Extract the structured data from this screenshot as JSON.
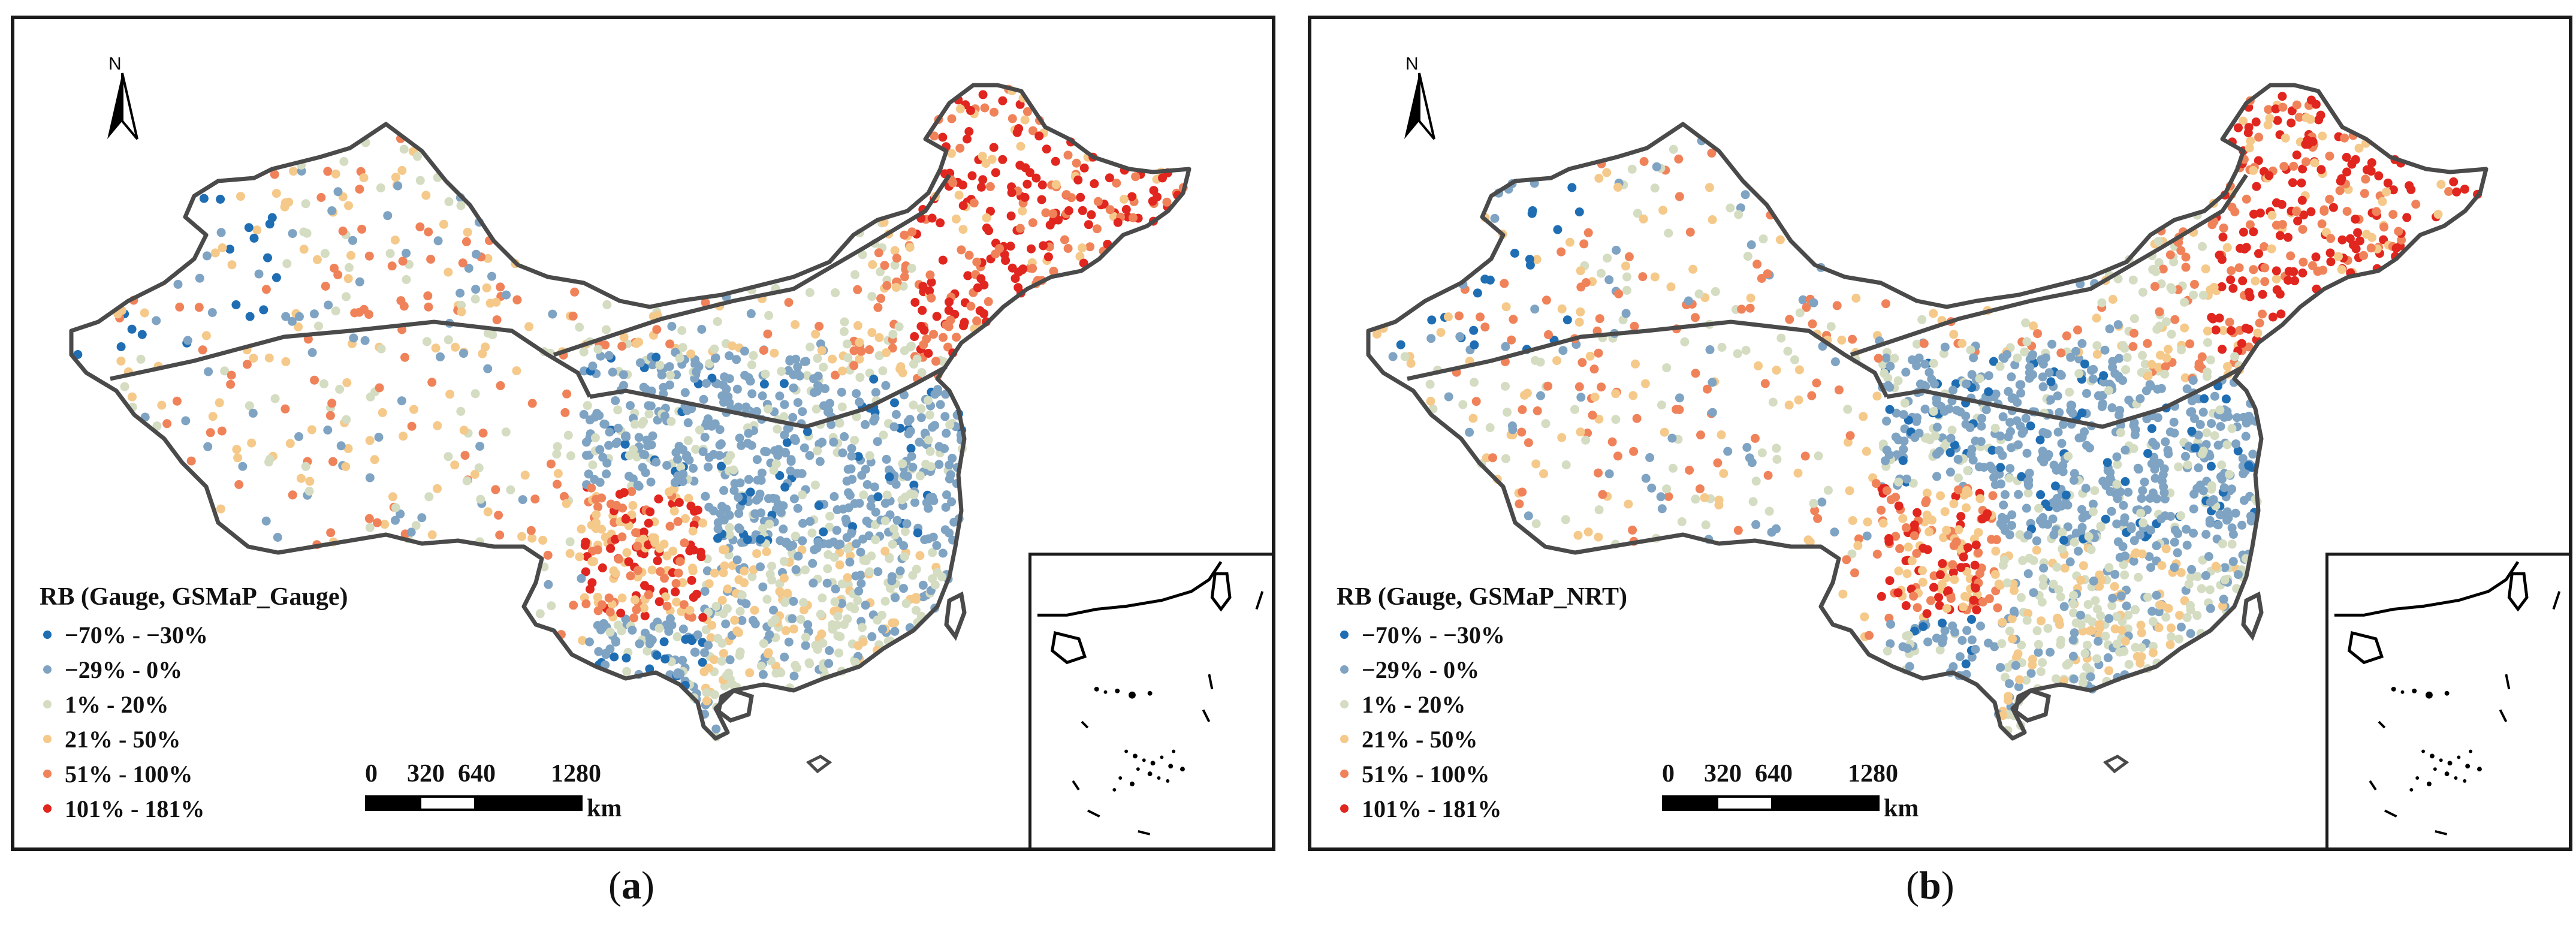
{
  "figure": {
    "panels": [
      {
        "id": "a",
        "legend_title": "RB (Gauge, GSMaP_Gauge)",
        "caption_letter": "a"
      },
      {
        "id": "b",
        "legend_title": "RB (Gauge, GSMaP_NRT)",
        "caption_letter": "b"
      }
    ],
    "north_label": "N",
    "legend_classes": [
      {
        "label": "−70% - −30%",
        "color": "#1f6eb4"
      },
      {
        "label": "−29% - 0%",
        "color": "#7fa3c2"
      },
      {
        "label": "1% - 20%",
        "color": "#d4dcc2"
      },
      {
        "label": "21% - 50%",
        "color": "#f5c98a"
      },
      {
        "label": "51% - 100%",
        "color": "#f0825a"
      },
      {
        "label": "101% - 181%",
        "color": "#e0261e"
      }
    ],
    "scale_bar": {
      "tick_labels": [
        "0",
        "320",
        "640",
        "1280"
      ],
      "unit": "km"
    }
  }
}
